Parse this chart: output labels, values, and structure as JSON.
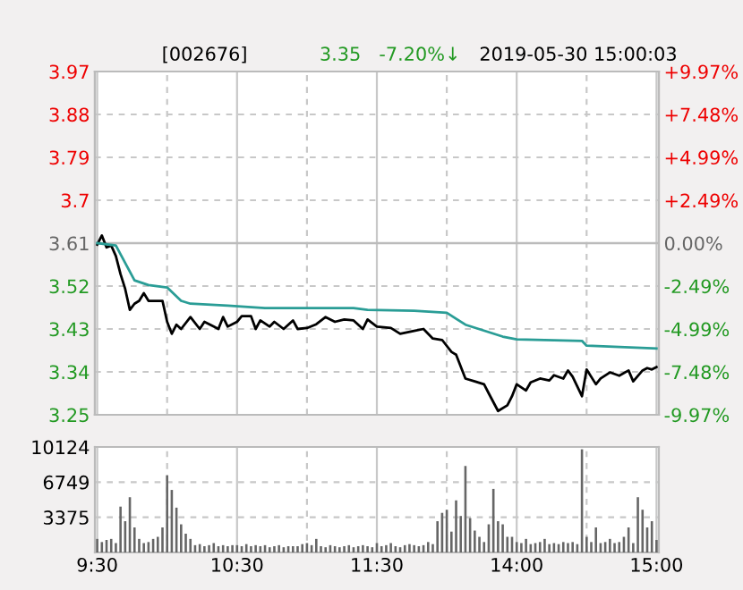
{
  "chart_data": [
    {
      "type": "line",
      "title": "[002676]",
      "annotations": [
        "3.35",
        "-7.20%↓",
        "2019-05-30 15:00:03"
      ],
      "categories": [
        null,
        null,
        null,
        null,
        null,
        null,
        null,
        null,
        null,
        null,
        null,
        null,
        null,
        null,
        null,
        null,
        null,
        null,
        null,
        null,
        null,
        null,
        null,
        null,
        null,
        null,
        null,
        null,
        null,
        null,
        null,
        null,
        null,
        null,
        null,
        null,
        null,
        null,
        null,
        null,
        null,
        null,
        null,
        null,
        null,
        null,
        null,
        null,
        null,
        null,
        null,
        null,
        null,
        null,
        null,
        null,
        null,
        null,
        null,
        null,
        null,
        null,
        null,
        null,
        null,
        null,
        null,
        null,
        null,
        null,
        null,
        null,
        null,
        null,
        null,
        null,
        null,
        null,
        null,
        null,
        null,
        null,
        null,
        null,
        null,
        null,
        null,
        null,
        null,
        null,
        null,
        null,
        null,
        null,
        null,
        null,
        null,
        null,
        null,
        null,
        null,
        null,
        null,
        null,
        null,
        null,
        null,
        null,
        null,
        null,
        null,
        null,
        null,
        null,
        null,
        null,
        null,
        null,
        null,
        null,
        null
      ],
      "series": [
        {
          "color": "#000000",
          "values": [
            3.607,
            3.626,
            3.601,
            3.605,
            3.583,
            3.545,
            3.514,
            3.47,
            3.483,
            3.489,
            3.505,
            3.489,
            null,
            null,
            3.489,
            3.445,
            3.42,
            3.439,
            3.43,
            null,
            3.455,
            null,
            3.43,
            3.445,
            null,
            3.435,
            3.43,
            3.455,
            3.435,
            null,
            3.445,
            3.457,
            null,
            3.457,
            3.43,
            3.448,
            null,
            3.435,
            3.445,
            null,
            3.43,
            null,
            3.448,
            3.43,
            null,
            3.432,
            null,
            3.44,
            null,
            3.455,
            null,
            3.445,
            null,
            3.45,
            null,
            3.448,
            null,
            3.43,
            3.45,
            null,
            3.435,
            null,
            null,
            3.432,
            null,
            3.42,
            null,
            null,
            3.426,
            null,
            3.43,
            null,
            3.41,
            null,
            3.407,
            null,
            3.382,
            3.376,
            null,
            3.326,
            null,
            3.32,
            null,
            3.314,
            3.295,
            null,
            3.258,
            null,
            3.27,
            3.289,
            3.314,
            null,
            3.301,
            3.318,
            null,
            3.326,
            null,
            3.322,
            3.333,
            null,
            3.326,
            3.343,
            3.33,
            null,
            3.289,
            3.345,
            null,
            3.314,
            3.326,
            null,
            3.339,
            null,
            3.332,
            null,
            3.343,
            3.32,
            null,
            3.343,
            3.348,
            3.345,
            3.35
          ]
        },
        {
          "color": "#2a9d96",
          "values": [
            3.61,
            null,
            null,
            null,
            3.605,
            null,
            null,
            null,
            3.532,
            null,
            null,
            3.522,
            null,
            null,
            null,
            3.517,
            null,
            null,
            3.489,
            null,
            3.483,
            null,
            null,
            null,
            null,
            null,
            null,
            null,
            3.479,
            null,
            null,
            null,
            null,
            null,
            null,
            null,
            3.474,
            null,
            null,
            null,
            null,
            null,
            null,
            null,
            null,
            null,
            null,
            null,
            null,
            null,
            null,
            null,
            null,
            null,
            null,
            3.474,
            null,
            null,
            3.47,
            null,
            null,
            null,
            null,
            null,
            null,
            null,
            null,
            null,
            3.468,
            null,
            null,
            null,
            null,
            null,
            null,
            3.464,
            null,
            null,
            null,
            3.439,
            null,
            null,
            null,
            null,
            null,
            null,
            null,
            3.414,
            null,
            null,
            3.408,
            null,
            null,
            null,
            null,
            null,
            null,
            null,
            null,
            null,
            null,
            null,
            null,
            null,
            3.405,
            3.395,
            null,
            null,
            null,
            null,
            null,
            null,
            null,
            null,
            null,
            null,
            null,
            null,
            null,
            null,
            3.389
          ]
        }
      ],
      "ylim": [
        3.25,
        3.97
      ],
      "yticks": [
        3.97,
        3.88,
        3.79,
        3.7,
        3.61,
        3.52,
        3.43,
        3.34,
        3.25
      ],
      "y2lim": [
        -9.97,
        9.97
      ],
      "y2ticks": [
        {
          "value": 9.97,
          "label": "+9.97%"
        },
        {
          "value": 7.48,
          "label": "+7.48%"
        },
        {
          "value": 4.99,
          "label": "+4.99%"
        },
        {
          "value": 2.49,
          "label": "+2.49%"
        },
        {
          "value": 0,
          "label": "0.00%"
        },
        {
          "value": -2.49,
          "label": "-2.49%"
        },
        {
          "value": -4.99,
          "label": "-4.99%"
        },
        {
          "value": -7.48,
          "label": "-7.48%"
        },
        {
          "value": -9.97,
          "label": "-9.97%"
        }
      ],
      "ref_lines": [
        {
          "axis": "y",
          "value": 3.61,
          "color": "#bbbbbb",
          "line_style": "solid"
        }
      ],
      "grid": true,
      "tick_labels": "y",
      "line_style": "solid",
      "marker": "none"
    },
    {
      "type": "bar",
      "color": "#666666",
      "categories": [
        "9:30",
        null,
        null,
        null,
        null,
        null,
        null,
        null,
        null,
        null,
        null,
        null,
        null,
        null,
        null,
        null,
        null,
        null,
        null,
        null,
        null,
        null,
        null,
        null,
        null,
        null,
        null,
        null,
        null,
        null,
        "10:30",
        null,
        null,
        null,
        null,
        null,
        null,
        null,
        null,
        null,
        null,
        null,
        null,
        null,
        null,
        null,
        null,
        null,
        null,
        null,
        null,
        null,
        null,
        null,
        null,
        null,
        null,
        null,
        null,
        null,
        "11:30",
        null,
        null,
        null,
        null,
        null,
        null,
        null,
        null,
        null,
        null,
        null,
        null,
        null,
        null,
        null,
        null,
        null,
        null,
        null,
        null,
        null,
        null,
        null,
        null,
        null,
        null,
        null,
        null,
        null,
        "14:00",
        null,
        null,
        null,
        null,
        null,
        null,
        null,
        null,
        null,
        null,
        null,
        null,
        null,
        null,
        null,
        null,
        null,
        null,
        null,
        null,
        null,
        null,
        null,
        null,
        null,
        null,
        null,
        null,
        null,
        "15:00"
      ],
      "values": [
        1300,
        1000,
        1200,
        1300,
        900,
        4400,
        3000,
        5300,
        2400,
        1300,
        900,
        1000,
        1300,
        1500,
        2400,
        7400,
        6000,
        4300,
        2700,
        1800,
        1300,
        700,
        800,
        600,
        700,
        900,
        600,
        700,
        600,
        700,
        700,
        600,
        800,
        600,
        700,
        600,
        700,
        500,
        600,
        700,
        500,
        600,
        600,
        600,
        800,
        900,
        700,
        1300,
        600,
        500,
        700,
        600,
        500,
        600,
        700,
        500,
        600,
        700,
        600,
        500,
        900,
        600,
        700,
        900,
        600,
        500,
        700,
        800,
        700,
        600,
        700,
        1000,
        800,
        3000,
        3800,
        4100,
        2000,
        5000,
        3500,
        8300,
        3300,
        2100,
        1500,
        1000,
        2700,
        6100,
        3000,
        2700,
        1500,
        1500,
        1000,
        900,
        1300,
        800,
        900,
        1000,
        1300,
        800,
        900,
        800,
        1000,
        900,
        1000,
        800,
        9900,
        1500,
        1000,
        2400,
        900,
        1000,
        1300,
        900,
        1000,
        1500,
        2400,
        900,
        5300,
        4100,
        2400,
        3000,
        1200
      ],
      "ylim": [
        0,
        10124
      ],
      "yticks": [
        3375,
        6749,
        10124
      ],
      "grid": true
    }
  ]
}
